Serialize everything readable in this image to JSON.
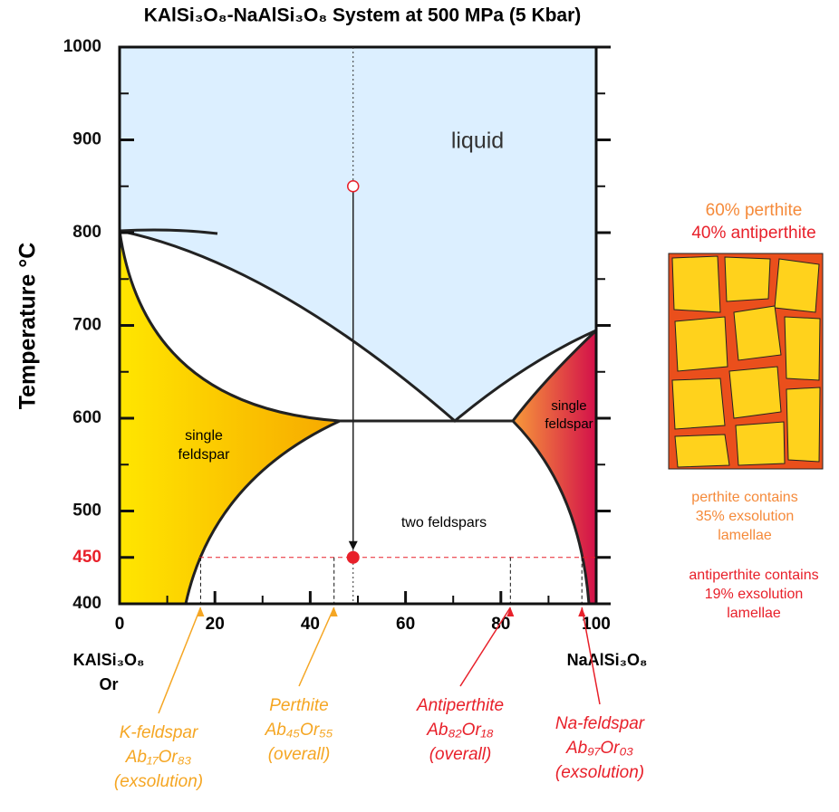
{
  "title": "KAlSi₃O₈-NaAlSi₃O₈ System at 500 MPa (5 Kbar)",
  "y_axis": {
    "label": "Temperature °C",
    "range": [
      400,
      1000
    ],
    "ticks": [
      400,
      450,
      500,
      600,
      700,
      800,
      900,
      1000
    ],
    "minor_ticks": [
      550,
      650,
      750,
      850,
      950
    ]
  },
  "x_axis": {
    "range": [
      0,
      100
    ],
    "ticks": [
      0,
      20,
      40,
      60,
      80,
      100
    ],
    "minor_ticks": [
      10,
      30,
      50,
      70,
      90
    ]
  },
  "regions": {
    "liquid": "liquid",
    "single_left": [
      "single",
      "feldspar"
    ],
    "single_right": [
      "single",
      "feldspar"
    ],
    "two": "two feldspars"
  },
  "end_members": {
    "left": [
      "KAlSi₃O₈",
      "Or"
    ],
    "right": "NaAlSi₃O₈"
  },
  "cooling_path": {
    "composition": 49,
    "start_temperature": 850,
    "end_temperature": 450
  },
  "annotations": [
    {
      "composition": 17,
      "lines": [
        "K-feldspar",
        "Ab₁₇Or₈₃",
        "(exsolution)"
      ],
      "color": "#f5a623"
    },
    {
      "composition": 45,
      "lines": [
        "Perthite",
        "Ab₄₅Or₅₅",
        "(overall)"
      ],
      "color": "#f5a623"
    },
    {
      "composition": 82,
      "lines": [
        "Antiperthite",
        "Ab₈₂Or₁₈",
        "(overall)"
      ],
      "color": "#e8202a"
    },
    {
      "composition": 97,
      "lines": [
        "Na-feldspar",
        "Ab₉₇Or₀₃",
        "(exsolution)"
      ],
      "color": "#e8202a"
    }
  ],
  "texture": {
    "top": [
      "60% perthite",
      "40% antiperthite"
    ],
    "perthite_note": [
      "perthite contains",
      "35% exsolution",
      "lamellae"
    ],
    "antiperthite_note": [
      "antiperthite contains",
      "19% exsolution",
      "lamellae"
    ]
  }
}
